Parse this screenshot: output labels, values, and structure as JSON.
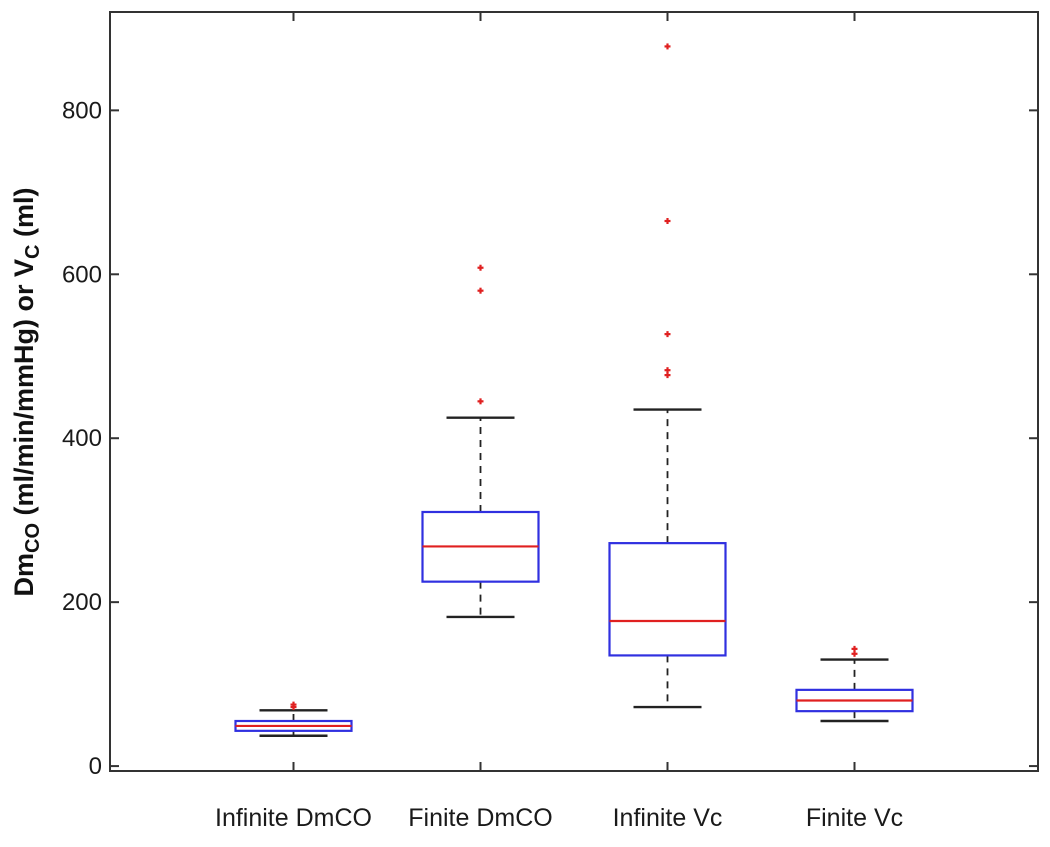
{
  "chart_data": {
    "type": "boxplot",
    "ylabel": {
      "parts": [
        {
          "text": "Dm",
          "sub": false
        },
        {
          "text": "CO",
          "sub": true
        },
        {
          "text": " (ml/min/mmHg) or V",
          "sub": false
        },
        {
          "text": "C",
          "sub": true
        },
        {
          "text": " (ml)",
          "sub": false
        }
      ]
    },
    "ylim": [
      -6,
      920
    ],
    "yticks": [
      0,
      200,
      400,
      600,
      800
    ],
    "categories": [
      "Infinite DmCO",
      "Finite DmCO",
      "Infinite Vc",
      "Finite Vc"
    ],
    "boxes": [
      {
        "category": "Infinite DmCO",
        "whisker_low": 37,
        "q1": 43,
        "median": 49,
        "q3": 55,
        "whisker_high": 68,
        "outliers": [
          72,
          75
        ]
      },
      {
        "category": "Finite DmCO",
        "whisker_low": 182,
        "q1": 225,
        "median": 268,
        "q3": 310,
        "whisker_high": 425,
        "outliers": [
          445,
          580,
          608
        ]
      },
      {
        "category": "Infinite Vc",
        "whisker_low": 72,
        "q1": 135,
        "median": 177,
        "q3": 272,
        "whisker_high": 435,
        "outliers": [
          477,
          483,
          527,
          665,
          878
        ]
      },
      {
        "category": "Finite Vc",
        "whisker_low": 55,
        "q1": 67,
        "median": 80,
        "q3": 93,
        "whisker_high": 130,
        "outliers": [
          137,
          143
        ]
      }
    ],
    "colors": {
      "box": "#3030e0",
      "median": "#e02020",
      "whisker": "#222222",
      "outlier": "#e02020",
      "axis": "#333333"
    }
  }
}
